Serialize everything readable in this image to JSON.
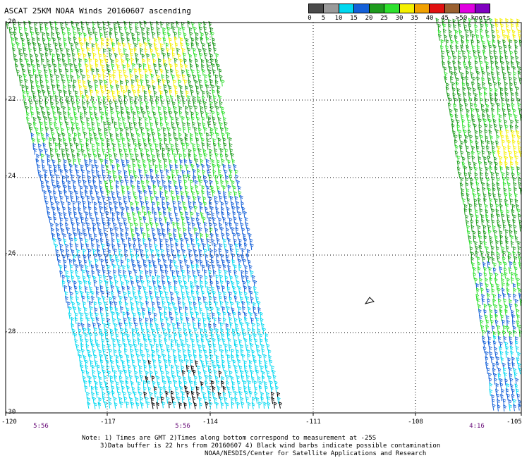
{
  "title": "ASCAT 25KM NOAA Winds 20160607 ascending",
  "legend": {
    "units": "knots",
    "bins": [
      {
        "label": "0",
        "color": "#4a4a4a"
      },
      {
        "label": "5",
        "color": "#9a9a9a"
      },
      {
        "label": "10",
        "color": "#00d8f0"
      },
      {
        "label": "15",
        "color": "#1460d8"
      },
      {
        "label": "20",
        "color": "#1e9b1e"
      },
      {
        "label": "25",
        "color": "#2ee02e"
      },
      {
        "label": "30",
        "color": "#f4f000"
      },
      {
        "label": "35",
        "color": "#f0a000"
      },
      {
        "label": "40",
        "color": "#e01010"
      },
      {
        "label": "45",
        "color": "#9a6030"
      },
      {
        "label": ">50 knots",
        "color": "#e000e0"
      },
      {
        "label": "",
        "color": "#8000c0"
      }
    ]
  },
  "axes": {
    "lat_labels": [
      "-20",
      "-22",
      "-24",
      "-26",
      "-28",
      "-30"
    ],
    "lon_labels": [
      "-120",
      "-117",
      "-114",
      "-111",
      "-108",
      "-105"
    ],
    "time_labels": [
      "5:56",
      "5:56",
      "4:16"
    ],
    "lat_range": [
      -30,
      -20
    ],
    "lon_range": [
      -120,
      -105
    ]
  },
  "notes": [
    "Note: 1) Times are GMT 2)Times along bottom correspond to measurement at -25S",
    "3)Data buffer is 22 hrs from 20160607 4) Black wind barbs indicate possible contamination",
    "NOAA/NESDIS/Center for Satellite Applications and Research"
  ]
}
